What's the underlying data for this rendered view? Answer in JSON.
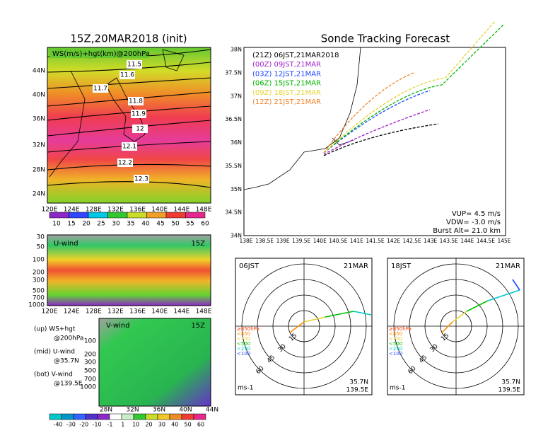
{
  "ws_map": {
    "title": "15Z,20MAR2018 (init)",
    "label": "WS(m/s)+hgt(km)@200hPa",
    "lat_labels": [
      "44N",
      "40N",
      "36N",
      "32N",
      "28N",
      "24N"
    ],
    "lon_labels": [
      "120E",
      "124E",
      "128E",
      "132E",
      "136E",
      "140E",
      "144E",
      "148E"
    ],
    "contour_labels": [
      "11.5",
      "11.6",
      "11.7",
      "11.8",
      "11.9",
      "12",
      "12.1",
      "12.2",
      "12.3"
    ],
    "colorbar": [
      "10",
      "15",
      "20",
      "25",
      "30",
      "35",
      "40",
      "45",
      "50",
      "55",
      "60"
    ]
  },
  "u_wind": {
    "label": "U-wind",
    "time": "15Z",
    "pressure_labels": [
      "30",
      "50",
      "100",
      "200",
      "300",
      "500",
      "700",
      "1000"
    ],
    "lon_labels": [
      "120E",
      "124E",
      "128E",
      "132E",
      "136E",
      "140E",
      "144E",
      "148E"
    ]
  },
  "notes": [
    "(up) WS+hgt",
    "@200hPa",
    "(mid) U-wind",
    "@35.7N",
    "(bot) V-wind",
    "@139.5E"
  ],
  "v_wind": {
    "label": "V-wind",
    "time": "15Z",
    "pressure_labels": [
      "100",
      "200",
      "300",
      "500",
      "700",
      "1000"
    ],
    "lat_labels": [
      "28N",
      "32N",
      "36N",
      "40N",
      "44N"
    ],
    "colorbar": [
      "-40",
      "-30",
      "-20",
      "-10",
      "-1",
      "1",
      "10",
      "20",
      "30",
      "40",
      "50",
      "60"
    ]
  },
  "tracking": {
    "title": "Sonde Tracking Forecast",
    "legend": [
      {
        "label": "(21Z) 06JST,21MAR2018",
        "color": "#000000"
      },
      {
        "label": "(00Z) 09JST,21MAR",
        "color": "#a020c8"
      },
      {
        "label": "(03Z) 12JST,21MAR",
        "color": "#1e46ff"
      },
      {
        "label": "(06Z) 15JST,21MAR",
        "color": "#00b400"
      },
      {
        "label": "(09Z) 18JST,21MAR",
        "color": "#e6d232"
      },
      {
        "label": "(12Z) 21JST,21MAR",
        "color": "#f08228"
      }
    ],
    "lat_labels": [
      "38N",
      "37.5N",
      "37N",
      "36.5N",
      "36N",
      "35.5N",
      "35N",
      "34.5N",
      "34N"
    ],
    "lon_labels": [
      "138E",
      "138.5E",
      "139E",
      "139.5E",
      "140E",
      "140.5E",
      "141E",
      "141.5E",
      "142E",
      "142.5E",
      "143E",
      "143.5E",
      "144E",
      "144.5E",
      "145E"
    ],
    "params": [
      "VUP= 4.5 m/s",
      "VDW= -3.0 m/s",
      "Burst Alt= 21.0 km"
    ]
  },
  "hodographs": [
    {
      "time": "06JST",
      "date": "21MAR",
      "ring_labels": [
        "15",
        "30",
        "45",
        "60"
      ],
      "unit": "ms-1",
      "lat": "35.7N",
      "lon": "139.5E",
      "pressure_legend": [
        {
          "label": "≥850hPa",
          "color": "#ff3c00"
        },
        {
          "label": "<850",
          "color": "#ff8c00"
        },
        {
          "label": "<700",
          "color": "#e6d232"
        },
        {
          "label": "<500",
          "color": "#00c000"
        },
        {
          "label": "<250",
          "color": "#00c8c8"
        },
        {
          "label": "<100",
          "color": "#1e46ff"
        }
      ]
    },
    {
      "time": "18JST",
      "date": "21MAR",
      "ring_labels": [
        "15",
        "30",
        "45",
        "60"
      ],
      "unit": "ms-1",
      "lat": "35.7N",
      "lon": "139.5E",
      "pressure_legend": [
        {
          "label": "≥850hPa",
          "color": "#ff3c00"
        },
        {
          "label": "<850",
          "color": "#ff8c00"
        },
        {
          "label": "<700",
          "color": "#e6d232"
        },
        {
          "label": "<500",
          "color": "#00c000"
        },
        {
          "label": "<250",
          "color": "#00c8c8"
        },
        {
          "label": "<100",
          "color": "#1e46ff"
        }
      ]
    }
  ]
}
